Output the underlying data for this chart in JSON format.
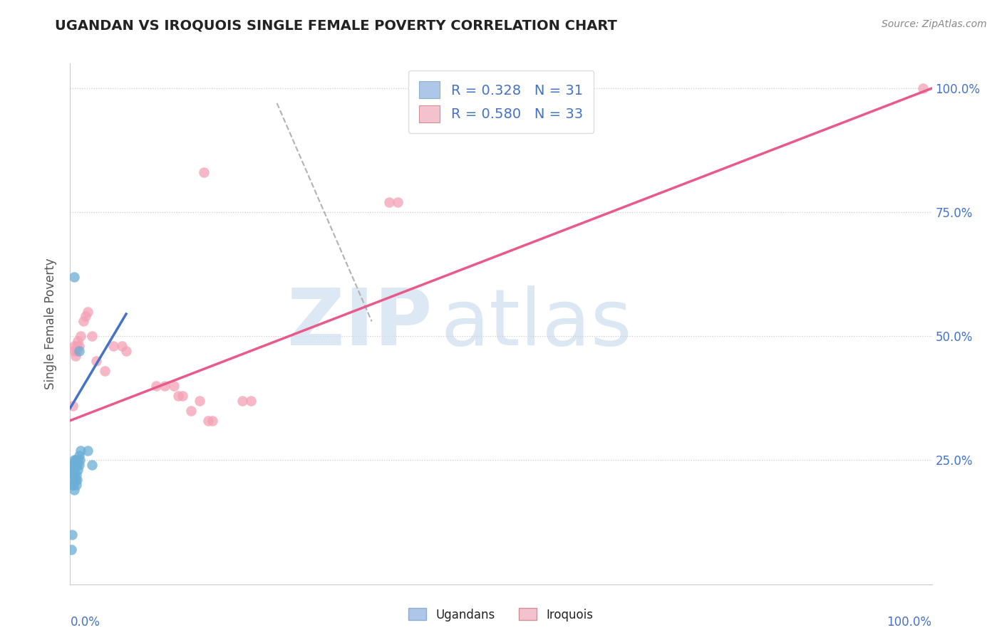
{
  "title": "UGANDAN VS IROQUOIS SINGLE FEMALE POVERTY CORRELATION CHART",
  "source": "Source: ZipAtlas.com",
  "ylabel": "Single Female Poverty",
  "ugandan_color": "#6baed6",
  "iroquois_color": "#f4a0b5",
  "legend_entries": [
    {
      "label": "R = 0.328   N = 31",
      "patch_color": "#aec6e8"
    },
    {
      "label": "R = 0.580   N = 33",
      "patch_color": "#f4c2ce"
    }
  ],
  "ugandan_points": [
    [
      0.005,
      0.62
    ],
    [
      0.01,
      0.47
    ],
    [
      0.002,
      0.2
    ],
    [
      0.003,
      0.21
    ],
    [
      0.003,
      0.23
    ],
    [
      0.003,
      0.24
    ],
    [
      0.004,
      0.2
    ],
    [
      0.004,
      0.22
    ],
    [
      0.004,
      0.23
    ],
    [
      0.005,
      0.19
    ],
    [
      0.005,
      0.22
    ],
    [
      0.005,
      0.24
    ],
    [
      0.005,
      0.25
    ],
    [
      0.006,
      0.21
    ],
    [
      0.006,
      0.24
    ],
    [
      0.006,
      0.25
    ],
    [
      0.007,
      0.2
    ],
    [
      0.007,
      0.22
    ],
    [
      0.007,
      0.25
    ],
    [
      0.008,
      0.21
    ],
    [
      0.008,
      0.24
    ],
    [
      0.009,
      0.23
    ],
    [
      0.009,
      0.25
    ],
    [
      0.01,
      0.24
    ],
    [
      0.01,
      0.26
    ],
    [
      0.011,
      0.25
    ],
    [
      0.012,
      0.27
    ],
    [
      0.02,
      0.27
    ],
    [
      0.025,
      0.24
    ],
    [
      0.001,
      0.07
    ],
    [
      0.002,
      0.1
    ]
  ],
  "iroquois_points": [
    [
      0.003,
      0.36
    ],
    [
      0.005,
      0.47
    ],
    [
      0.005,
      0.48
    ],
    [
      0.006,
      0.46
    ],
    [
      0.007,
      0.47
    ],
    [
      0.008,
      0.48
    ],
    [
      0.009,
      0.49
    ],
    [
      0.01,
      0.48
    ],
    [
      0.012,
      0.5
    ],
    [
      0.015,
      0.53
    ],
    [
      0.018,
      0.54
    ],
    [
      0.02,
      0.55
    ],
    [
      0.025,
      0.5
    ],
    [
      0.03,
      0.45
    ],
    [
      0.04,
      0.43
    ],
    [
      0.05,
      0.48
    ],
    [
      0.06,
      0.48
    ],
    [
      0.065,
      0.47
    ],
    [
      0.1,
      0.4
    ],
    [
      0.11,
      0.4
    ],
    [
      0.12,
      0.4
    ],
    [
      0.125,
      0.38
    ],
    [
      0.13,
      0.38
    ],
    [
      0.14,
      0.35
    ],
    [
      0.15,
      0.37
    ],
    [
      0.16,
      0.33
    ],
    [
      0.165,
      0.33
    ],
    [
      0.2,
      0.37
    ],
    [
      0.21,
      0.37
    ],
    [
      0.155,
      0.83
    ],
    [
      0.37,
      0.77
    ],
    [
      0.38,
      0.77
    ],
    [
      0.99,
      1.0
    ]
  ],
  "blue_line": [
    [
      0.0,
      0.355
    ],
    [
      0.065,
      0.545
    ]
  ],
  "pink_line": [
    [
      0.0,
      0.33
    ],
    [
      1.0,
      1.0
    ]
  ],
  "gray_dashed_line": [
    [
      0.24,
      0.97
    ],
    [
      0.35,
      0.53
    ]
  ],
  "watermark_zip": "ZIP",
  "watermark_atlas": "atlas",
  "background_color": "#ffffff",
  "grid_color": "#cccccc",
  "grid_linestyle": ":",
  "ytick_vals": [
    0.25,
    0.5,
    0.75,
    1.0
  ],
  "ytick_labels": [
    "25.0%",
    "50.0%",
    "75.0%",
    "100.0%"
  ],
  "xlim": [
    0.0,
    1.0
  ],
  "ylim": [
    0.0,
    1.05
  ]
}
